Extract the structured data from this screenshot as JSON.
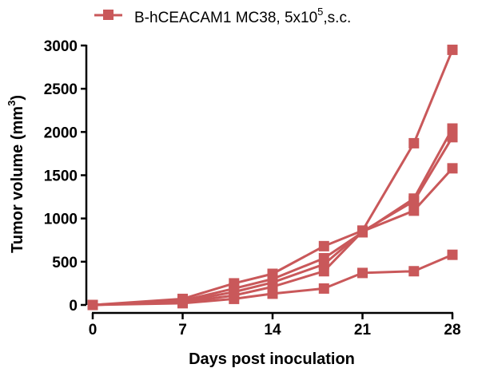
{
  "chart_data": {
    "type": "line",
    "legend": {
      "label": "B-hCEACAM1 MC38, 5x10",
      "superscript": "5",
      "suffix": ",s.c.",
      "placement": "top",
      "marker": "square"
    },
    "xlabel": "Days post inoculation",
    "ylabel": "Tumor volume (mm",
    "ylabel_superscript": "3",
    "ylabel_suffix": ")",
    "xlim": [
      0,
      28
    ],
    "ylim": [
      0,
      3000
    ],
    "xticks": [
      "0",
      "7",
      "14",
      "21",
      "28"
    ],
    "yticks": [
      "0",
      "500",
      "1000",
      "1500",
      "2000",
      "2500",
      "3000"
    ],
    "grid": false,
    "color": "#c9585a",
    "x": [
      0,
      7,
      11,
      14,
      18,
      21,
      25,
      28
    ],
    "series": [
      {
        "values": [
          0,
          70,
          250,
          360,
          680,
          860,
          1870,
          2950
        ]
      },
      {
        "values": [
          0,
          50,
          190,
          300,
          540,
          840,
          1230,
          2040
        ]
      },
      {
        "values": [
          0,
          40,
          150,
          260,
          470,
          850,
          1200,
          1940
        ]
      },
      {
        "values": [
          0,
          30,
          110,
          210,
          390,
          850,
          1090,
          1580
        ]
      },
      {
        "values": [
          0,
          20,
          70,
          130,
          190,
          370,
          390,
          580
        ]
      }
    ]
  }
}
